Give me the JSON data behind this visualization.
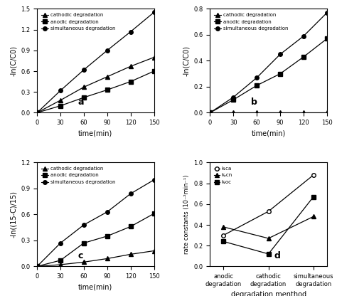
{
  "time": [
    0,
    30,
    60,
    90,
    120,
    150
  ],
  "panel_a": {
    "cathodic": [
      0.0,
      0.18,
      0.37,
      0.52,
      0.67,
      0.8
    ],
    "anodic": [
      0.0,
      0.1,
      0.22,
      0.33,
      0.45,
      0.6
    ],
    "simultaneous": [
      0.0,
      0.32,
      0.62,
      0.9,
      1.17,
      1.45
    ],
    "ylabel": "-ln(C/C0)",
    "label": "a",
    "ylim": [
      0,
      1.5
    ],
    "yticks": [
      0.0,
      0.3,
      0.6,
      0.9,
      1.2,
      1.5
    ]
  },
  "panel_b": {
    "cathodic": [
      0.0,
      0.0,
      0.0,
      0.0,
      0.0,
      0.0
    ],
    "anodic": [
      0.0,
      0.1,
      0.21,
      0.3,
      0.43,
      0.57
    ],
    "simultaneous": [
      0.0,
      0.12,
      0.27,
      0.45,
      0.59,
      0.77
    ],
    "ylabel": "-ln(C/C0)",
    "label": "b",
    "ylim": [
      0,
      0.8
    ],
    "yticks": [
      0.0,
      0.2,
      0.4,
      0.6,
      0.8
    ]
  },
  "panel_c": {
    "cathodic": [
      0.0,
      0.02,
      0.05,
      0.09,
      0.14,
      0.18
    ],
    "anodic": [
      0.0,
      0.07,
      0.27,
      0.35,
      0.46,
      0.61
    ],
    "simultaneous": [
      0.0,
      0.27,
      0.48,
      0.63,
      0.84,
      1.0
    ],
    "ylabel": "-ln((15-C)/15)",
    "label": "c",
    "ylim": [
      0,
      1.2
    ],
    "yticks": [
      0.0,
      0.3,
      0.6,
      0.9,
      1.2
    ]
  },
  "panel_d": {
    "label": "d",
    "ylabel": "rate constants (10⁻²min⁻¹)",
    "xlabel": "degradation menthod",
    "xtick_labels": [
      "anodic\ndegradation",
      "cathodic\ndegradation",
      "simultaneous\ndegradation"
    ],
    "ktca": [
      0.3,
      0.53,
      0.88
    ],
    "kacn": [
      0.38,
      0.27,
      0.48
    ],
    "kroc": [
      0.24,
      0.12,
      0.67
    ],
    "ylim": [
      0,
      1.0
    ],
    "yticks": [
      0.0,
      0.2,
      0.4,
      0.6,
      0.8,
      1.0
    ]
  },
  "legend_labels": [
    "cathodic degradation",
    "anodic degradation",
    "simultaneous degradation"
  ]
}
